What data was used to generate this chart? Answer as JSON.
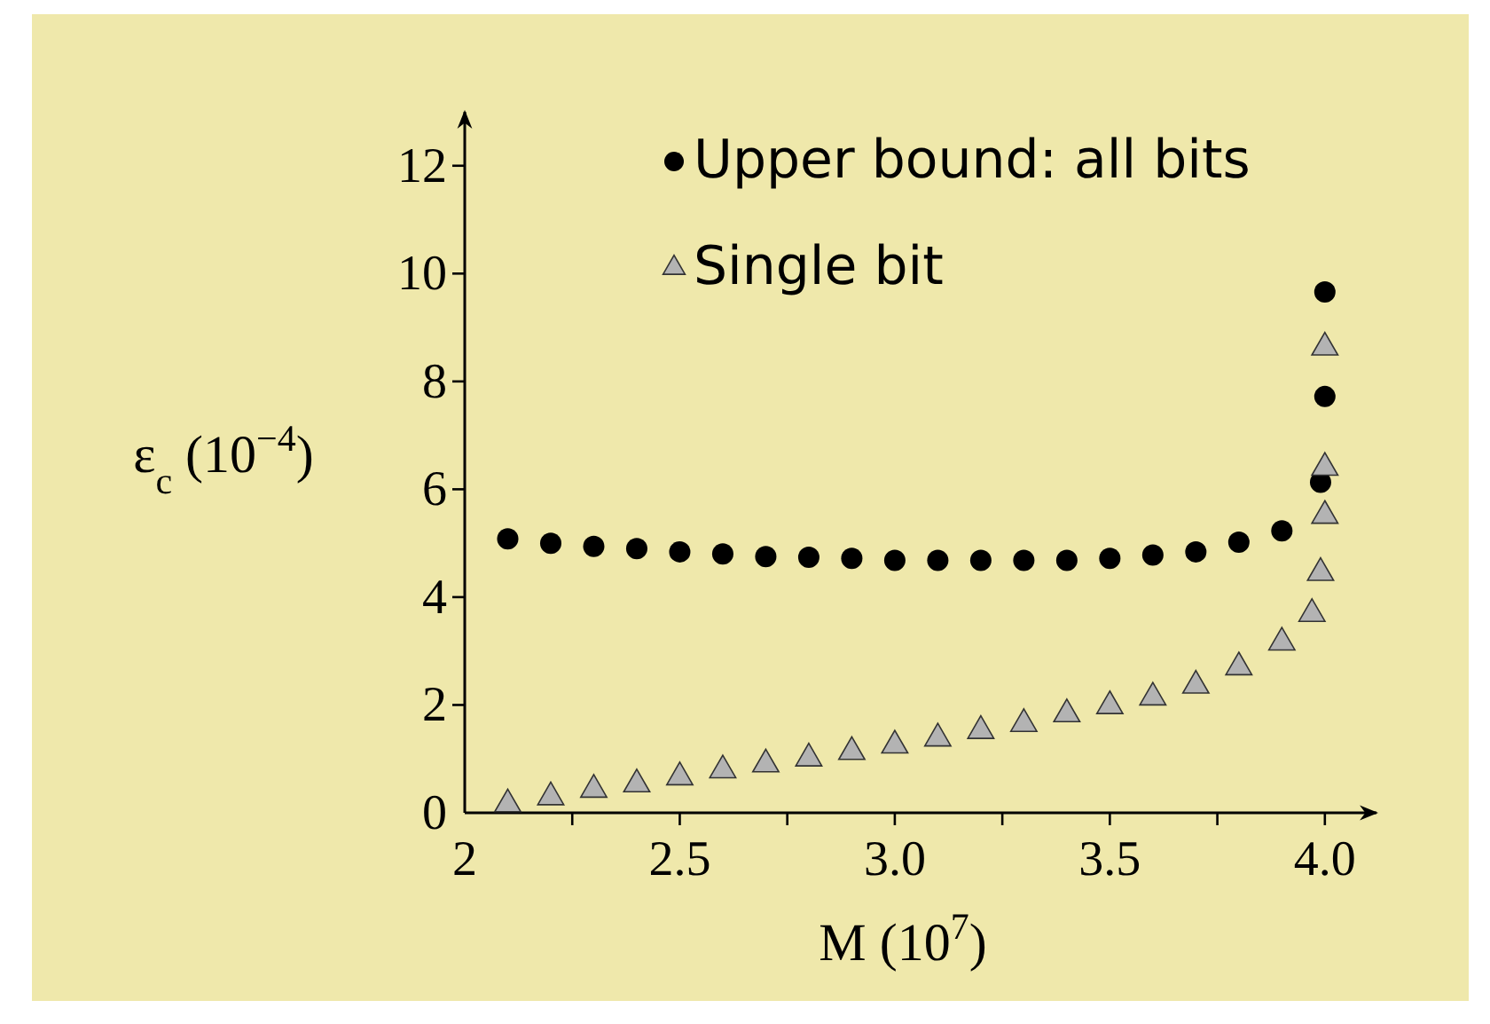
{
  "chart_data": {
    "type": "scatter",
    "xlabel": "M (10$^{7}$)",
    "ylabel": "ε$_{c}$ (10$^{−4}$)",
    "xlim": [
      2,
      4.12
    ],
    "ylim": [
      0,
      13
    ],
    "xticks": [
      2,
      {
        "value": 2.25,
        "label": null
      },
      2.5,
      {
        "value": 2.75,
        "label": null
      },
      {
        "value": 3,
        "label": "3.0"
      },
      {
        "value": 3.25,
        "label": null
      },
      3.5,
      {
        "value": 3.75,
        "label": null
      },
      {
        "value": 4,
        "label": "4.0"
      }
    ],
    "yticks": [
      0,
      2,
      4,
      6,
      8,
      10,
      12
    ],
    "grid": false,
    "legend": "top",
    "series": [
      {
        "name": "Upper bound: all bits",
        "color": "#000000",
        "marker": "circle",
        "x": [
          2.1,
          2.2,
          2.3,
          2.4,
          2.5,
          2.6,
          2.7,
          2.8,
          2.9,
          3.0,
          3.1,
          3.2,
          3.3,
          3.4,
          3.5,
          3.6,
          3.7,
          3.8,
          3.9,
          3.99,
          4.0,
          4.0
        ],
        "values": [
          5.08,
          5.0,
          4.94,
          4.9,
          4.84,
          4.8,
          4.75,
          4.74,
          4.72,
          4.68,
          4.68,
          4.68,
          4.68,
          4.68,
          4.72,
          4.78,
          4.84,
          5.02,
          5.23,
          6.13,
          7.72,
          9.66
        ]
      },
      {
        "name": "Single bit",
        "color": "#b3b3b3",
        "marker": "triangle",
        "x": [
          2.1,
          2.2,
          2.3,
          2.4,
          2.5,
          2.6,
          2.7,
          2.8,
          2.9,
          3.0,
          3.1,
          3.2,
          3.3,
          3.4,
          3.5,
          3.6,
          3.7,
          3.8,
          3.9,
          3.97,
          3.99,
          4.0,
          4.0,
          4.0
        ],
        "values": [
          0.16,
          0.29,
          0.43,
          0.53,
          0.66,
          0.79,
          0.9,
          1.01,
          1.13,
          1.25,
          1.38,
          1.52,
          1.65,
          1.83,
          1.98,
          2.14,
          2.36,
          2.7,
          3.16,
          3.69,
          4.45,
          5.51,
          6.4,
          8.63
        ]
      }
    ]
  }
}
